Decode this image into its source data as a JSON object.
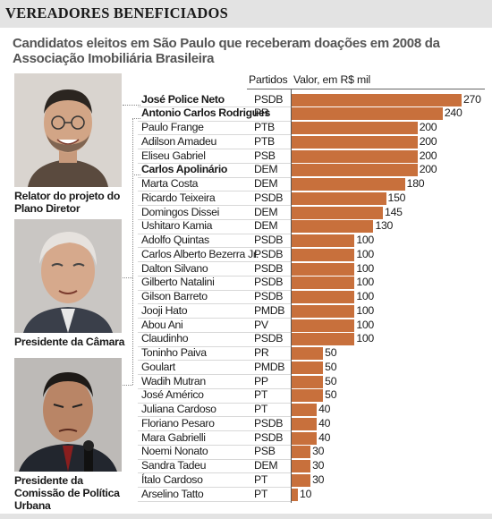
{
  "title": "VEREADORES BENEFICIADOS",
  "subtitle": "Candidatos eleitos em São Paulo que receberam doações em 2008 da Associação Imobiliária Brasileira",
  "captions": [
    "Relator do projeto do Plano Diretor",
    "Presidente da Câmara",
    "Presidente da Comissão de Política Urbana"
  ],
  "colors": {
    "bar": "#c8703c",
    "header_band": "#e3e3e3"
  },
  "chart_data": {
    "type": "bar",
    "orientation": "horizontal",
    "party_column_label": "Partidos",
    "value_column_label": "Valor, em R$ mil",
    "xlim": [
      0,
      270
    ],
    "grid": false,
    "rows": [
      {
        "name": "José Police Neto",
        "party": "PSDB",
        "value": 270,
        "highlight": true
      },
      {
        "name": "Antonio Carlos Rodrigues",
        "party": "PR",
        "value": 240,
        "highlight": true
      },
      {
        "name": "Paulo Frange",
        "party": "PTB",
        "value": 200,
        "highlight": false
      },
      {
        "name": "Adilson Amadeu",
        "party": "PTB",
        "value": 200,
        "highlight": false
      },
      {
        "name": "Eliseu Gabriel",
        "party": "PSB",
        "value": 200,
        "highlight": false
      },
      {
        "name": "Carlos Apolinário",
        "party": "DEM",
        "value": 200,
        "highlight": true
      },
      {
        "name": "Marta Costa",
        "party": "DEM",
        "value": 180,
        "highlight": false
      },
      {
        "name": "Ricardo Teixeira",
        "party": "PSDB",
        "value": 150,
        "highlight": false
      },
      {
        "name": "Domingos Dissei",
        "party": "DEM",
        "value": 145,
        "highlight": false
      },
      {
        "name": "Ushitaro Kamia",
        "party": "DEM",
        "value": 130,
        "highlight": false
      },
      {
        "name": "Adolfo Quintas",
        "party": "PSDB",
        "value": 100,
        "highlight": false
      },
      {
        "name": "Carlos Alberto Bezerra Jr.",
        "party": "PSDB",
        "value": 100,
        "highlight": false
      },
      {
        "name": "Dalton Silvano",
        "party": "PSDB",
        "value": 100,
        "highlight": false
      },
      {
        "name": "Gilberto Natalini",
        "party": "PSDB",
        "value": 100,
        "highlight": false
      },
      {
        "name": "Gilson Barreto",
        "party": "PSDB",
        "value": 100,
        "highlight": false
      },
      {
        "name": "Jooji Hato",
        "party": "PMDB",
        "value": 100,
        "highlight": false
      },
      {
        "name": "Abou Ani",
        "party": "PV",
        "value": 100,
        "highlight": false
      },
      {
        "name": "Claudinho",
        "party": "PSDB",
        "value": 100,
        "highlight": false
      },
      {
        "name": "Toninho Paiva",
        "party": "PR",
        "value": 50,
        "highlight": false
      },
      {
        "name": "Goulart",
        "party": "PMDB",
        "value": 50,
        "highlight": false
      },
      {
        "name": "Wadih Mutran",
        "party": "PP",
        "value": 50,
        "highlight": false
      },
      {
        "name": "José Américo",
        "party": "PT",
        "value": 50,
        "highlight": false
      },
      {
        "name": "Juliana Cardoso",
        "party": "PT",
        "value": 40,
        "highlight": false
      },
      {
        "name": "Floriano Pesaro",
        "party": "PSDB",
        "value": 40,
        "highlight": false
      },
      {
        "name": "Mara Gabrielli",
        "party": "PSDB",
        "value": 40,
        "highlight": false
      },
      {
        "name": "Noemi Nonato",
        "party": "PSB",
        "value": 30,
        "highlight": false
      },
      {
        "name": "Sandra Tadeu",
        "party": "DEM",
        "value": 30,
        "highlight": false
      },
      {
        "name": "Ítalo Cardoso",
        "party": "PT",
        "value": 30,
        "highlight": false
      },
      {
        "name": "Arselino Tatto",
        "party": "PT",
        "value": 10,
        "highlight": false
      }
    ]
  }
}
